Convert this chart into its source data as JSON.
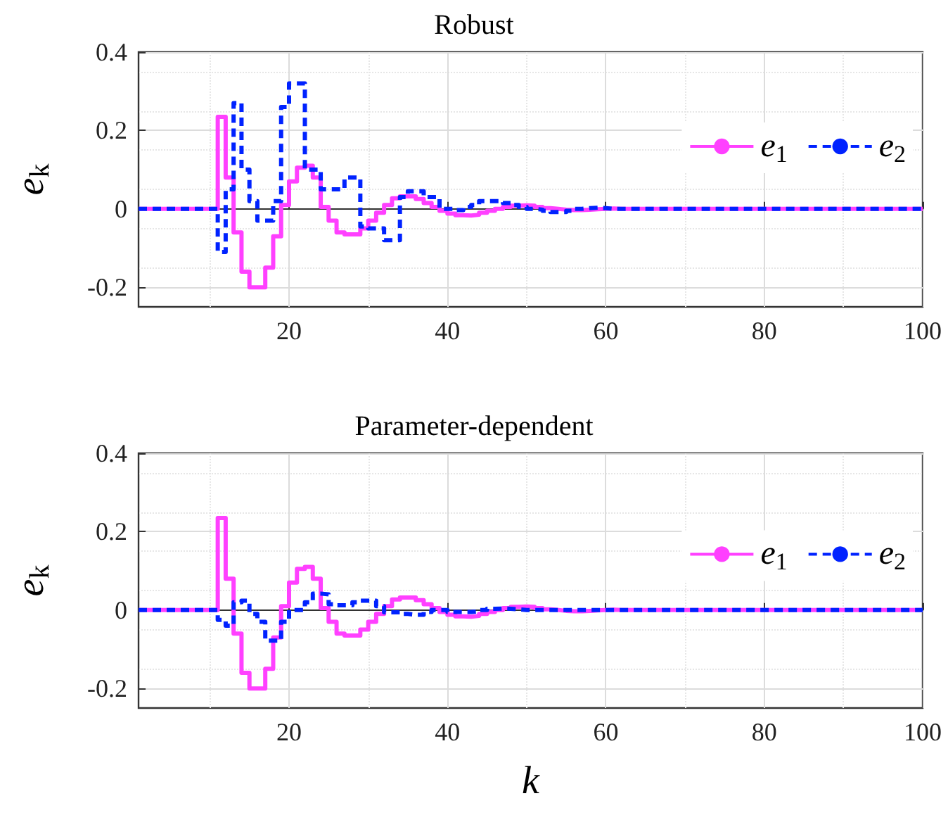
{
  "chart_data": [
    {
      "type": "step",
      "title": "Robust",
      "ylabel": "e$_{k}$",
      "xlim": [
        1,
        100
      ],
      "xticks": [
        20,
        40,
        60,
        80,
        100
      ],
      "ylim": [
        -0.25,
        0.4
      ],
      "yticks": [
        -0.2,
        0,
        0.2,
        0.4
      ],
      "grid": true,
      "legend": "right",
      "marker": "none",
      "x": [
        1,
        2,
        3,
        4,
        5,
        6,
        7,
        8,
        9,
        10,
        11,
        12,
        13,
        14,
        15,
        16,
        17,
        18,
        19,
        20,
        21,
        22,
        23,
        24,
        25,
        26,
        27,
        28,
        29,
        30,
        31,
        32,
        33,
        34,
        35,
        36,
        37,
        38,
        39,
        40,
        41,
        42,
        43,
        44,
        45,
        46,
        47,
        48,
        49,
        50,
        51,
        52,
        53,
        54,
        55,
        56,
        57,
        58,
        59,
        60,
        61,
        62,
        63,
        64,
        65,
        66,
        67,
        68,
        69,
        70,
        71,
        72,
        73,
        74,
        75,
        76,
        77,
        78,
        79,
        80,
        81,
        82,
        83,
        84,
        85,
        86,
        87,
        88,
        89,
        90,
        91,
        92,
        93,
        94,
        95,
        96,
        97,
        98,
        99,
        100
      ],
      "series": [
        {
          "name": "e$_{1}$",
          "color": "#ff40ff",
          "line_style": "solid",
          "values": [
            0,
            0,
            0,
            0,
            0,
            0,
            0,
            0,
            0,
            0,
            0.235,
            0.08,
            -0.06,
            -0.16,
            -0.2,
            -0.2,
            -0.15,
            -0.07,
            0.01,
            0.07,
            0.105,
            0.11,
            0.08,
            0.005,
            -0.03,
            -0.06,
            -0.065,
            -0.065,
            -0.05,
            -0.03,
            -0.01,
            0.01,
            0.027,
            0.032,
            0.032,
            0.025,
            0.015,
            0.005,
            -0.005,
            -0.012,
            -0.016,
            -0.017,
            -0.015,
            -0.01,
            -0.005,
            0,
            0.005,
            0.008,
            0.009,
            0.008,
            0.005,
            0.002,
            0,
            -0.002,
            -0.003,
            -0.003,
            -0.002,
            -0.001,
            0,
            0.001,
            0,
            0,
            0,
            0,
            0,
            0,
            0,
            0,
            0,
            0,
            0,
            0,
            0,
            0,
            0,
            0,
            0,
            0,
            0,
            0,
            0,
            0,
            0,
            0,
            0,
            0,
            0,
            0,
            0,
            0,
            0,
            0,
            0,
            0,
            0,
            0,
            0,
            0,
            0,
            0
          ]
        },
        {
          "name": "e$_{2}$",
          "color": "#0022ff",
          "line_style": "dashed",
          "values": [
            0,
            0,
            0,
            0,
            0,
            0,
            0,
            0,
            0,
            0,
            -0.11,
            0.05,
            0.27,
            0.1,
            0.02,
            -0.03,
            -0.03,
            0.02,
            0.26,
            0.32,
            0.32,
            0.1,
            0.1,
            0.05,
            0.05,
            0.05,
            0.08,
            0.08,
            -0.045,
            -0.05,
            -0.05,
            -0.08,
            -0.08,
            0.03,
            0.045,
            0.045,
            0.03,
            0.03,
            0,
            0,
            -0.003,
            0.005,
            0.01,
            0.02,
            0.02,
            0.02,
            0.015,
            0.01,
            0.005,
            0,
            -0.002,
            -0.005,
            -0.008,
            -0.008,
            -0.005,
            0,
            0.002,
            0.003,
            0.002,
            0,
            0,
            0,
            0,
            0,
            0,
            0,
            0,
            0,
            0,
            0,
            0,
            0,
            0,
            0,
            0,
            0,
            0,
            0,
            0,
            0,
            0,
            0,
            0,
            0,
            0,
            0,
            0,
            0,
            0,
            0,
            0,
            0,
            0,
            0,
            0,
            0,
            0,
            0,
            0,
            0
          ]
        }
      ]
    },
    {
      "type": "step",
      "title": "Parameter-dependent",
      "xlabel": "k",
      "ylabel": "e$_{k}$",
      "xlim": [
        1,
        100
      ],
      "xticks": [
        20,
        40,
        60,
        80,
        100
      ],
      "ylim": [
        -0.25,
        0.4
      ],
      "yticks": [
        -0.2,
        0,
        0.2,
        0.4
      ],
      "grid": true,
      "legend": "right",
      "marker": "none",
      "x": [
        1,
        2,
        3,
        4,
        5,
        6,
        7,
        8,
        9,
        10,
        11,
        12,
        13,
        14,
        15,
        16,
        17,
        18,
        19,
        20,
        21,
        22,
        23,
        24,
        25,
        26,
        27,
        28,
        29,
        30,
        31,
        32,
        33,
        34,
        35,
        36,
        37,
        38,
        39,
        40,
        41,
        42,
        43,
        44,
        45,
        46,
        47,
        48,
        49,
        50,
        51,
        52,
        53,
        54,
        55,
        56,
        57,
        58,
        59,
        60,
        61,
        62,
        63,
        64,
        65,
        66,
        67,
        68,
        69,
        70,
        71,
        72,
        73,
        74,
        75,
        76,
        77,
        78,
        79,
        80,
        81,
        82,
        83,
        84,
        85,
        86,
        87,
        88,
        89,
        90,
        91,
        92,
        93,
        94,
        95,
        96,
        97,
        98,
        99,
        100
      ],
      "series": [
        {
          "name": "e$_{1}$",
          "color": "#ff40ff",
          "line_style": "solid",
          "values": [
            0,
            0,
            0,
            0,
            0,
            0,
            0,
            0,
            0,
            0,
            0.235,
            0.08,
            -0.06,
            -0.16,
            -0.2,
            -0.2,
            -0.15,
            -0.07,
            0.01,
            0.07,
            0.105,
            0.11,
            0.08,
            0.005,
            -0.03,
            -0.06,
            -0.065,
            -0.065,
            -0.05,
            -0.03,
            -0.01,
            0.01,
            0.027,
            0.032,
            0.032,
            0.025,
            0.015,
            0.005,
            -0.005,
            -0.012,
            -0.016,
            -0.017,
            -0.015,
            -0.01,
            -0.005,
            0,
            0.005,
            0.008,
            0.009,
            0.008,
            0.005,
            0.002,
            0,
            -0.002,
            -0.003,
            -0.003,
            -0.002,
            -0.001,
            0,
            0.001,
            0,
            0,
            0,
            0,
            0,
            0,
            0,
            0,
            0,
            0,
            0,
            0,
            0,
            0,
            0,
            0,
            0,
            0,
            0,
            0,
            0,
            0,
            0,
            0,
            0,
            0,
            0,
            0,
            0,
            0,
            0,
            0,
            0,
            0,
            0,
            0,
            0,
            0,
            0,
            0
          ]
        },
        {
          "name": "e$_{2}$",
          "color": "#0022ff",
          "line_style": "dashed",
          "values": [
            0,
            0,
            0,
            0,
            0,
            0,
            0,
            0,
            0,
            0,
            -0.025,
            -0.04,
            0.02,
            0.024,
            -0.01,
            -0.03,
            -0.078,
            -0.078,
            -0.03,
            0,
            0,
            0.02,
            0.042,
            0.04,
            0.015,
            0.012,
            0.012,
            0.02,
            0.024,
            0.024,
            0.01,
            -0.006,
            -0.006,
            -0.01,
            -0.012,
            -0.012,
            -0.005,
            0,
            0,
            -0.005,
            -0.005,
            -0.005,
            -0.003,
            0,
            0.003,
            0.004,
            0.003,
            0.002,
            0,
            0,
            0,
            0,
            0,
            0,
            0,
            0,
            0,
            0,
            0,
            0,
            0,
            0,
            0,
            0,
            0,
            0,
            0,
            0,
            0,
            0,
            0,
            0,
            0,
            0,
            0,
            0,
            0,
            0,
            0,
            0,
            0,
            0,
            0,
            0,
            0,
            0,
            0,
            0,
            0,
            0,
            0,
            0,
            0,
            0,
            0,
            0,
            0,
            0,
            0,
            0
          ]
        }
      ]
    }
  ]
}
